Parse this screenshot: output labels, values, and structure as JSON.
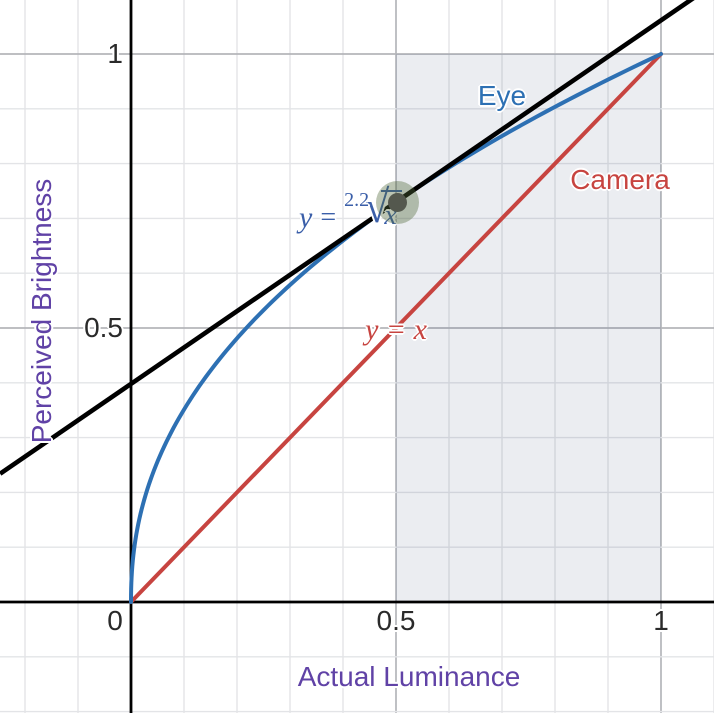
{
  "chart_data": {
    "type": "line",
    "title": "",
    "xlabel": "Actual Luminance",
    "ylabel": "Perceived Brightness",
    "xlim": [
      -0.247,
      1.1
    ],
    "ylim": [
      -0.203,
      1.098
    ],
    "grid": {
      "visible": true,
      "minor_step": 0.1,
      "major_step": 0.5
    },
    "x_ticks": [
      {
        "value": 0,
        "label": "0"
      },
      {
        "value": 0.5,
        "label": "0.5"
      },
      {
        "value": 1,
        "label": "1"
      }
    ],
    "y_ticks": [
      {
        "value": 0.5,
        "label": "0.5"
      },
      {
        "value": 1,
        "label": "1"
      }
    ],
    "series": [
      {
        "name": "Eye",
        "label": "Eye",
        "equation": "y = x^(1/2.2)",
        "root_index": 2.2,
        "domain": [
          0,
          1
        ],
        "color": "#2d70b3",
        "points_sample": [
          [
            0,
            0
          ],
          [
            0.1,
            0.351
          ],
          [
            0.2,
            0.481
          ],
          [
            0.3,
            0.578
          ],
          [
            0.4,
            0.659
          ],
          [
            0.5,
            0.7297
          ],
          [
            0.6,
            0.793
          ],
          [
            0.7,
            0.85
          ],
          [
            0.8,
            0.903
          ],
          [
            0.9,
            0.953
          ],
          [
            1,
            1
          ]
        ]
      },
      {
        "name": "Camera",
        "label": "Camera",
        "equation": "y = x",
        "domain": [
          0,
          1
        ],
        "color": "#c74440",
        "points_sample": [
          [
            0,
            0
          ],
          [
            1,
            1
          ]
        ]
      },
      {
        "name": "Tangent",
        "label": "",
        "equation": "tangent to Eye at x = 0.5",
        "tangent_at_x": 0.5,
        "slope": 0.6634,
        "intercept": 0.398,
        "color": "#000000"
      }
    ],
    "point": {
      "x": 0.5,
      "y": 0.7297,
      "dot_color": "#54584e",
      "halo_color": "rgba(79,103,55,0.38)"
    },
    "shaded_region": {
      "x_min": 0.5,
      "x_max": 1,
      "y_min": 0,
      "y_max": 1,
      "fill": "rgba(30,50,100,0.09)"
    },
    "annotations": {
      "eye_label": {
        "text": "Eye",
        "color": "#2d70b3"
      },
      "camera_label": {
        "text": "Camera",
        "color": "#c74440"
      },
      "camera_equation": {
        "text": "y = x",
        "color": "#c74440"
      },
      "eye_equation": {
        "variable": "y",
        "equals": "=",
        "root_index": "2.2",
        "radical_symbol": "√",
        "radicand": "x",
        "color": "#3b5fa9"
      }
    },
    "colors": {
      "background": "#ffffff",
      "axis": "#000000",
      "minor_grid": "#e3e4e7",
      "major_grid": "#b4b6ba",
      "tick_text": "#2a2a2a",
      "axis_title": "#6042a6"
    }
  }
}
